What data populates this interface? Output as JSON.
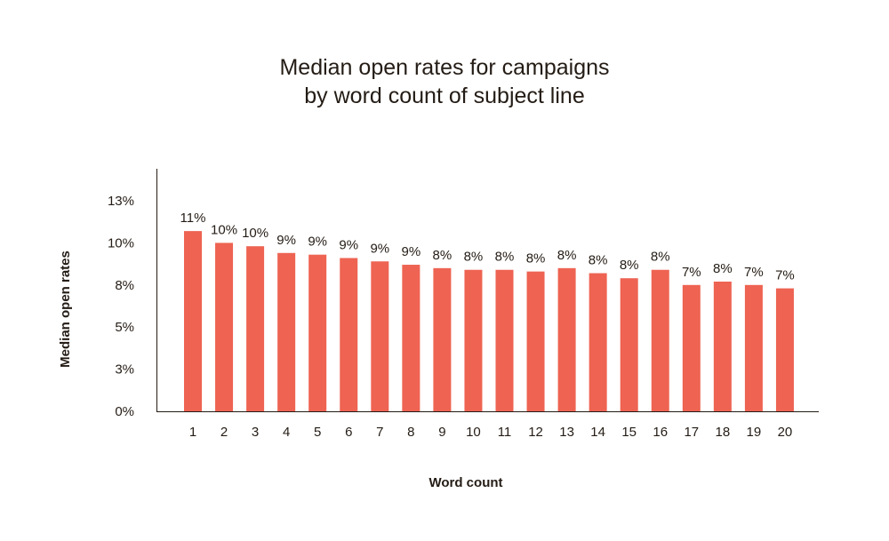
{
  "chart_data": {
    "type": "bar",
    "title_lines": [
      "Median open rates for campaigns",
      "by word count of subject line"
    ],
    "xlabel": "Word count",
    "ylabel": "Median open rates",
    "categories": [
      "1",
      "2",
      "3",
      "4",
      "5",
      "6",
      "7",
      "8",
      "9",
      "10",
      "11",
      "12",
      "13",
      "14",
      "15",
      "16",
      "17",
      "18",
      "19",
      "20"
    ],
    "values": [
      10.7,
      10.0,
      9.8,
      9.4,
      9.3,
      9.1,
      8.9,
      8.7,
      8.5,
      8.4,
      8.4,
      8.3,
      8.5,
      8.2,
      7.9,
      8.4,
      7.5,
      7.7,
      7.5,
      7.3
    ],
    "data_labels": [
      "11%",
      "10%",
      "10%",
      "9%",
      "9%",
      "9%",
      "9%",
      "9%",
      "8%",
      "8%",
      "8%",
      "8%",
      "8%",
      "8%",
      "8%",
      "8%",
      "7%",
      "8%",
      "7%",
      "7%"
    ],
    "y_ticks": [
      0,
      2.5,
      5,
      7.5,
      10,
      12.5
    ],
    "y_tick_labels": [
      "0%",
      "3%",
      "5%",
      "8%",
      "10%",
      "13%"
    ],
    "ylim": [
      0,
      12.5
    ],
    "grid": false,
    "bar_color": "#ee6352"
  }
}
